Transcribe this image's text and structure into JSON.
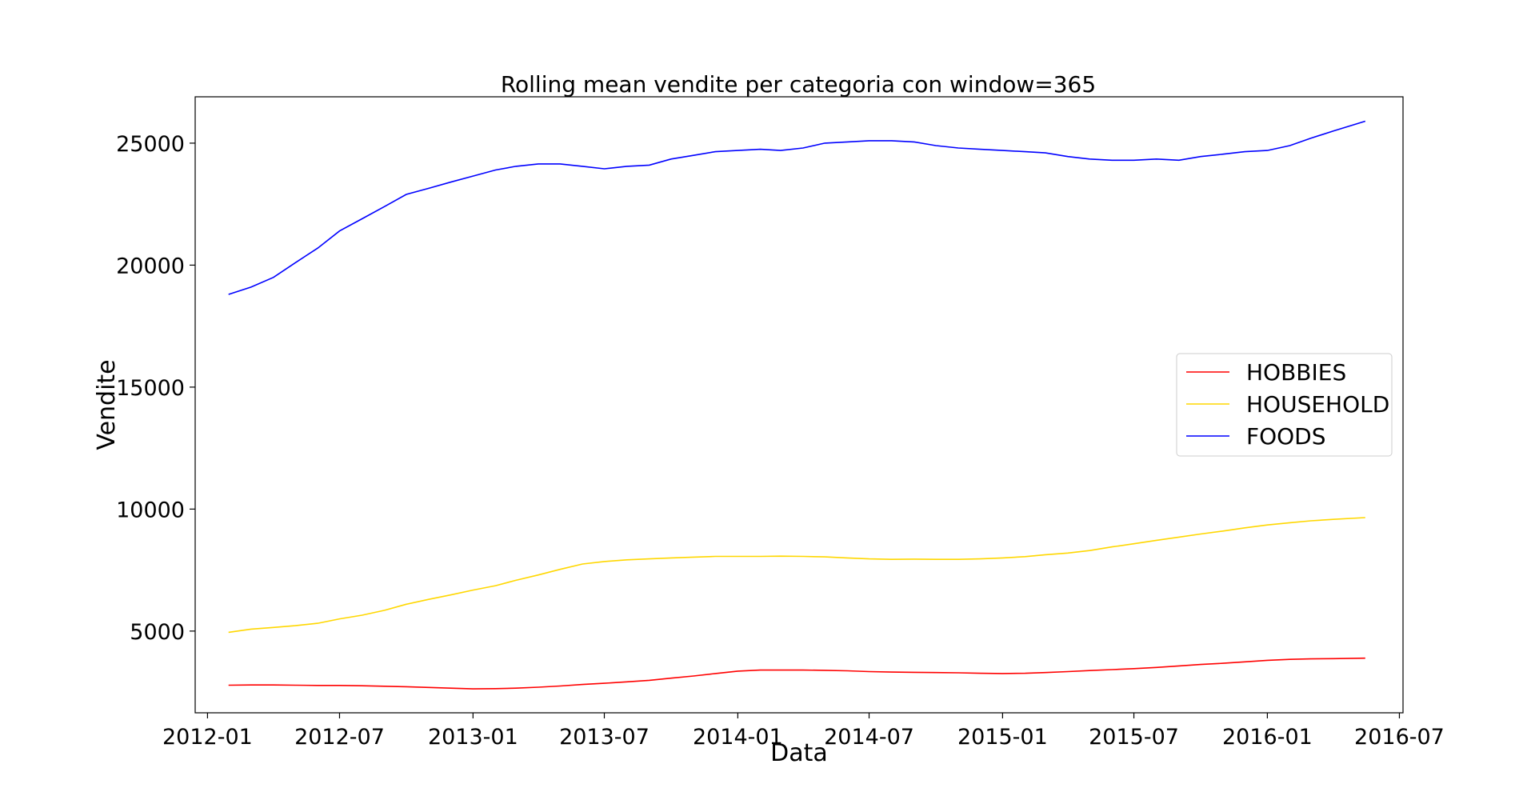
{
  "chart_data": {
    "type": "line",
    "title": "Rolling mean vendite per categoria con window=365",
    "xlabel": "Data",
    "ylabel": "Vendite",
    "xlim": [
      "2011-12-15",
      "2016-07-06"
    ],
    "ylim": [
      1650,
      26900
    ],
    "x_ticks": [
      "2012-01",
      "2012-07",
      "2013-01",
      "2013-07",
      "2014-01",
      "2014-07",
      "2015-01",
      "2015-07",
      "2016-01",
      "2016-07"
    ],
    "y_ticks": [
      5000,
      10000,
      15000,
      20000,
      25000
    ],
    "grid": false,
    "legend_position": "center-right",
    "series": [
      {
        "name": "HOBBIES",
        "color": "#ff0000",
        "points": [
          [
            "2012-01-30",
            2780
          ],
          [
            "2012-03-01",
            2790
          ],
          [
            "2012-04-01",
            2790
          ],
          [
            "2012-05-01",
            2780
          ],
          [
            "2012-06-01",
            2770
          ],
          [
            "2012-07-01",
            2770
          ],
          [
            "2012-08-01",
            2760
          ],
          [
            "2012-09-01",
            2740
          ],
          [
            "2012-10-01",
            2720
          ],
          [
            "2012-11-01",
            2690
          ],
          [
            "2012-12-01",
            2660
          ],
          [
            "2013-01-01",
            2630
          ],
          [
            "2013-02-01",
            2640
          ],
          [
            "2013-03-01",
            2660
          ],
          [
            "2013-04-01",
            2700
          ],
          [
            "2013-05-01",
            2750
          ],
          [
            "2013-06-01",
            2810
          ],
          [
            "2013-07-01",
            2860
          ],
          [
            "2013-08-01",
            2920
          ],
          [
            "2013-09-01",
            2980
          ],
          [
            "2013-10-01",
            3070
          ],
          [
            "2013-11-01",
            3160
          ],
          [
            "2013-12-01",
            3260
          ],
          [
            "2014-01-01",
            3360
          ],
          [
            "2014-02-01",
            3400
          ],
          [
            "2014-03-01",
            3400
          ],
          [
            "2014-04-01",
            3400
          ],
          [
            "2014-05-01",
            3390
          ],
          [
            "2014-06-01",
            3370
          ],
          [
            "2014-07-01",
            3340
          ],
          [
            "2014-08-01",
            3320
          ],
          [
            "2014-09-01",
            3310
          ],
          [
            "2014-10-01",
            3300
          ],
          [
            "2014-11-01",
            3290
          ],
          [
            "2014-12-01",
            3270
          ],
          [
            "2015-01-01",
            3260
          ],
          [
            "2015-02-01",
            3270
          ],
          [
            "2015-03-01",
            3300
          ],
          [
            "2015-04-01",
            3340
          ],
          [
            "2015-05-01",
            3380
          ],
          [
            "2015-06-01",
            3420
          ],
          [
            "2015-07-01",
            3460
          ],
          [
            "2015-08-01",
            3510
          ],
          [
            "2015-09-01",
            3570
          ],
          [
            "2015-10-01",
            3630
          ],
          [
            "2015-11-01",
            3680
          ],
          [
            "2015-12-01",
            3740
          ],
          [
            "2016-01-01",
            3800
          ],
          [
            "2016-02-01",
            3840
          ],
          [
            "2016-03-01",
            3860
          ],
          [
            "2016-04-01",
            3870
          ],
          [
            "2016-05-15",
            3890
          ]
        ]
      },
      {
        "name": "HOUSEHOLD",
        "color": "#ffd700",
        "points": [
          [
            "2012-01-30",
            4950
          ],
          [
            "2012-03-01",
            5080
          ],
          [
            "2012-04-01",
            5150
          ],
          [
            "2012-05-01",
            5220
          ],
          [
            "2012-06-01",
            5320
          ],
          [
            "2012-07-01",
            5500
          ],
          [
            "2012-08-01",
            5650
          ],
          [
            "2012-09-01",
            5850
          ],
          [
            "2012-10-01",
            6100
          ],
          [
            "2012-11-01",
            6300
          ],
          [
            "2012-12-01",
            6480
          ],
          [
            "2013-01-01",
            6680
          ],
          [
            "2013-02-01",
            6860
          ],
          [
            "2013-03-01",
            7080
          ],
          [
            "2013-04-01",
            7300
          ],
          [
            "2013-05-01",
            7530
          ],
          [
            "2013-06-01",
            7750
          ],
          [
            "2013-07-01",
            7850
          ],
          [
            "2013-08-01",
            7920
          ],
          [
            "2013-09-01",
            7960
          ],
          [
            "2013-10-01",
            8000
          ],
          [
            "2013-11-01",
            8030
          ],
          [
            "2013-12-01",
            8060
          ],
          [
            "2014-01-01",
            8060
          ],
          [
            "2014-02-01",
            8060
          ],
          [
            "2014-03-01",
            8070
          ],
          [
            "2014-04-01",
            8060
          ],
          [
            "2014-05-01",
            8040
          ],
          [
            "2014-06-01",
            8000
          ],
          [
            "2014-07-01",
            7960
          ],
          [
            "2014-08-01",
            7940
          ],
          [
            "2014-09-01",
            7950
          ],
          [
            "2014-10-01",
            7940
          ],
          [
            "2014-11-01",
            7940
          ],
          [
            "2014-12-01",
            7960
          ],
          [
            "2015-01-01",
            8000
          ],
          [
            "2015-02-01",
            8050
          ],
          [
            "2015-03-01",
            8130
          ],
          [
            "2015-04-01",
            8200
          ],
          [
            "2015-05-01",
            8300
          ],
          [
            "2015-06-01",
            8450
          ],
          [
            "2015-07-01",
            8580
          ],
          [
            "2015-08-01",
            8720
          ],
          [
            "2015-09-01",
            8850
          ],
          [
            "2015-10-01",
            8980
          ],
          [
            "2015-11-01",
            9100
          ],
          [
            "2015-12-01",
            9230
          ],
          [
            "2016-01-01",
            9350
          ],
          [
            "2016-02-01",
            9440
          ],
          [
            "2016-03-01",
            9520
          ],
          [
            "2016-04-01",
            9580
          ],
          [
            "2016-05-15",
            9650
          ]
        ]
      },
      {
        "name": "FOODS",
        "color": "#0000ff",
        "points": [
          [
            "2012-01-30",
            18800
          ],
          [
            "2012-03-01",
            19100
          ],
          [
            "2012-04-01",
            19500
          ],
          [
            "2012-05-01",
            20100
          ],
          [
            "2012-06-01",
            20700
          ],
          [
            "2012-07-01",
            21400
          ],
          [
            "2012-08-01",
            21900
          ],
          [
            "2012-09-01",
            22400
          ],
          [
            "2012-10-01",
            22900
          ],
          [
            "2012-11-01",
            23150
          ],
          [
            "2012-12-01",
            23400
          ],
          [
            "2013-01-01",
            23650
          ],
          [
            "2013-02-01",
            23900
          ],
          [
            "2013-03-01",
            24050
          ],
          [
            "2013-04-01",
            24150
          ],
          [
            "2013-05-01",
            24150
          ],
          [
            "2013-06-01",
            24050
          ],
          [
            "2013-07-01",
            23950
          ],
          [
            "2013-08-01",
            24050
          ],
          [
            "2013-09-01",
            24100
          ],
          [
            "2013-10-01",
            24350
          ],
          [
            "2013-11-01",
            24500
          ],
          [
            "2013-12-01",
            24650
          ],
          [
            "2014-01-01",
            24700
          ],
          [
            "2014-02-01",
            24750
          ],
          [
            "2014-03-01",
            24700
          ],
          [
            "2014-04-01",
            24800
          ],
          [
            "2014-05-01",
            25000
          ],
          [
            "2014-06-01",
            25050
          ],
          [
            "2014-07-01",
            25100
          ],
          [
            "2014-08-01",
            25100
          ],
          [
            "2014-09-01",
            25050
          ],
          [
            "2014-10-01",
            24900
          ],
          [
            "2014-11-01",
            24800
          ],
          [
            "2014-12-01",
            24750
          ],
          [
            "2015-01-01",
            24700
          ],
          [
            "2015-02-01",
            24650
          ],
          [
            "2015-03-01",
            24600
          ],
          [
            "2015-04-01",
            24450
          ],
          [
            "2015-05-01",
            24350
          ],
          [
            "2015-06-01",
            24300
          ],
          [
            "2015-07-01",
            24300
          ],
          [
            "2015-08-01",
            24350
          ],
          [
            "2015-09-01",
            24300
          ],
          [
            "2015-10-01",
            24450
          ],
          [
            "2015-11-01",
            24550
          ],
          [
            "2015-12-01",
            24650
          ],
          [
            "2016-01-01",
            24700
          ],
          [
            "2016-02-01",
            24900
          ],
          [
            "2016-03-01",
            25200
          ],
          [
            "2016-04-01",
            25500
          ],
          [
            "2016-05-15",
            25900
          ]
        ]
      }
    ]
  }
}
